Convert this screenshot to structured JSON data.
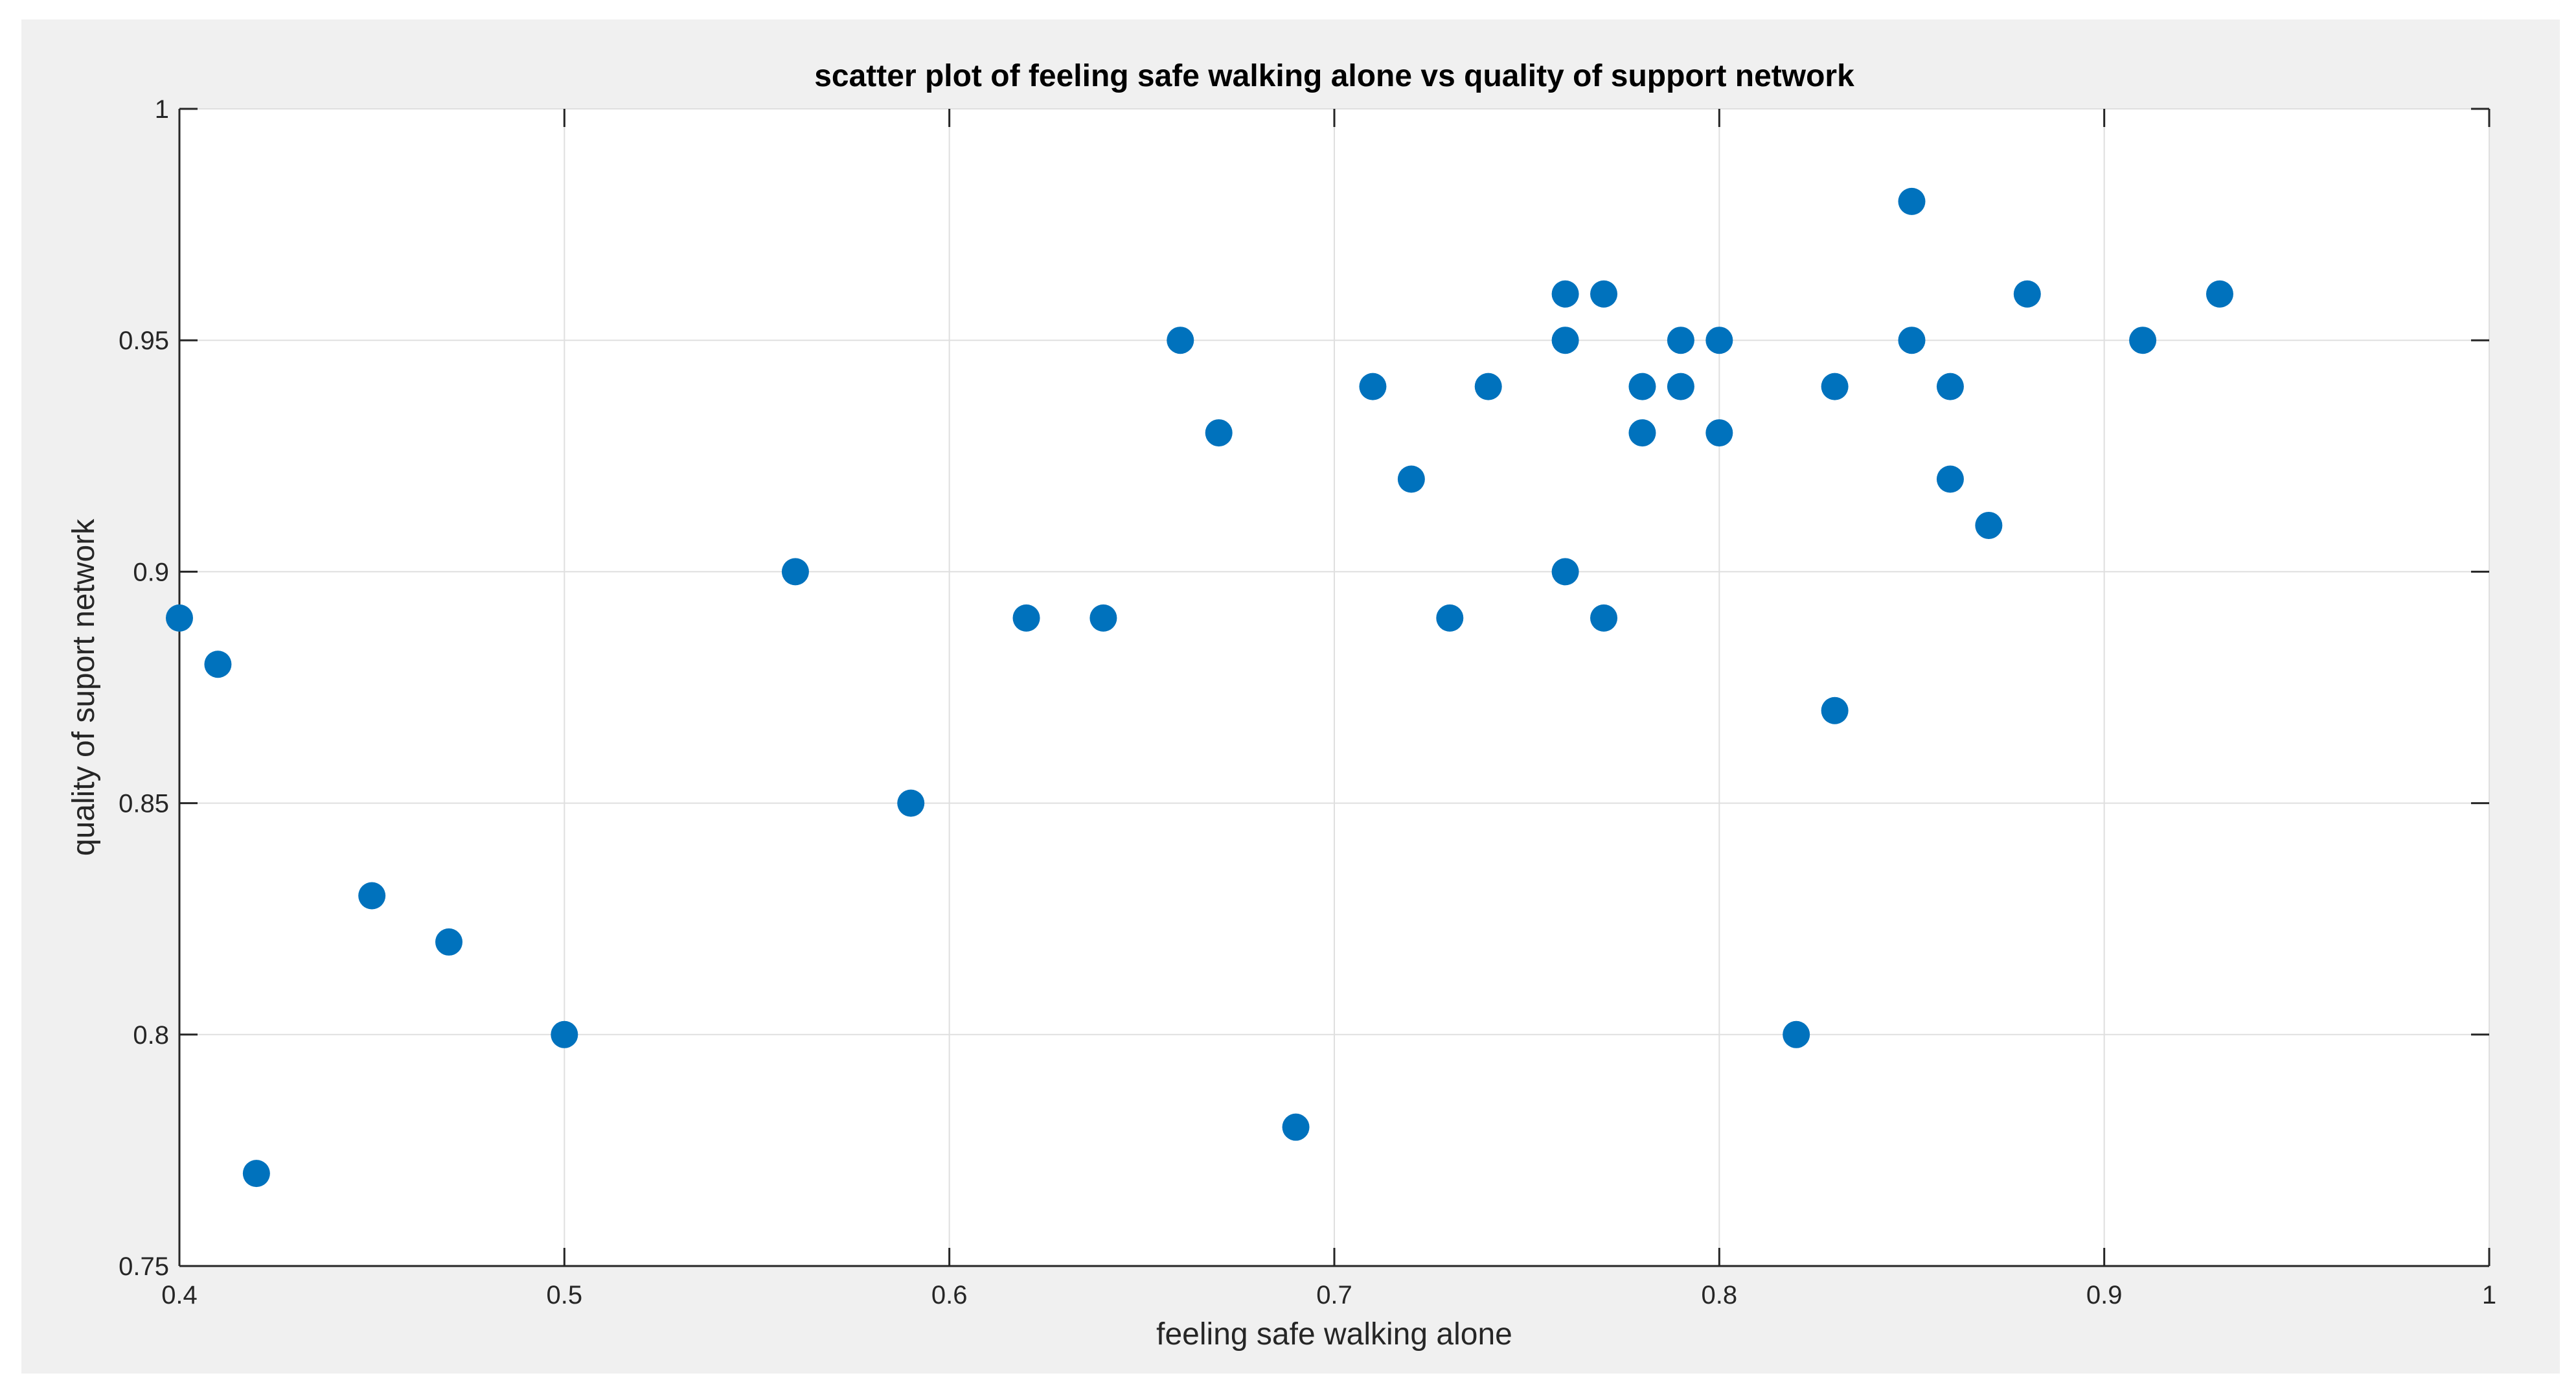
{
  "chart_data": {
    "type": "scatter",
    "title": "scatter plot of feeling safe walking alone vs quality of support network",
    "xlabel": "feeling safe walking alone",
    "ylabel": "quality of suport network",
    "xlim": [
      0.4,
      1
    ],
    "ylim": [
      0.75,
      1
    ],
    "xticks": [
      "0.4",
      "0.5",
      "0.6",
      "0.7",
      "0.8",
      "0.9",
      "1"
    ],
    "yticks": [
      "0.75",
      "0.8",
      "0.85",
      "0.9",
      "0.95",
      "1"
    ],
    "grid": true,
    "marker_color": "#0072bd",
    "points": [
      {
        "x": 0.4,
        "y": 0.89
      },
      {
        "x": 0.41,
        "y": 0.88
      },
      {
        "x": 0.42,
        "y": 0.77
      },
      {
        "x": 0.45,
        "y": 0.83
      },
      {
        "x": 0.47,
        "y": 0.82
      },
      {
        "x": 0.5,
        "y": 0.8
      },
      {
        "x": 0.56,
        "y": 0.9
      },
      {
        "x": 0.59,
        "y": 0.85
      },
      {
        "x": 0.62,
        "y": 0.89
      },
      {
        "x": 0.64,
        "y": 0.89
      },
      {
        "x": 0.66,
        "y": 0.95
      },
      {
        "x": 0.67,
        "y": 0.93
      },
      {
        "x": 0.69,
        "y": 0.78
      },
      {
        "x": 0.71,
        "y": 0.94
      },
      {
        "x": 0.72,
        "y": 0.92
      },
      {
        "x": 0.73,
        "y": 0.89
      },
      {
        "x": 0.74,
        "y": 0.94
      },
      {
        "x": 0.76,
        "y": 0.96
      },
      {
        "x": 0.76,
        "y": 0.95
      },
      {
        "x": 0.76,
        "y": 0.9
      },
      {
        "x": 0.77,
        "y": 0.96
      },
      {
        "x": 0.77,
        "y": 0.89
      },
      {
        "x": 0.78,
        "y": 0.94
      },
      {
        "x": 0.78,
        "y": 0.93
      },
      {
        "x": 0.79,
        "y": 0.95
      },
      {
        "x": 0.79,
        "y": 0.94
      },
      {
        "x": 0.8,
        "y": 0.95
      },
      {
        "x": 0.8,
        "y": 0.93
      },
      {
        "x": 0.82,
        "y": 0.8
      },
      {
        "x": 0.83,
        "y": 0.94
      },
      {
        "x": 0.83,
        "y": 0.87
      },
      {
        "x": 0.85,
        "y": 0.98
      },
      {
        "x": 0.85,
        "y": 0.95
      },
      {
        "x": 0.86,
        "y": 0.94
      },
      {
        "x": 0.86,
        "y": 0.92
      },
      {
        "x": 0.87,
        "y": 0.91
      },
      {
        "x": 0.88,
        "y": 0.96
      },
      {
        "x": 0.91,
        "y": 0.95
      },
      {
        "x": 0.93,
        "y": 0.96
      }
    ]
  }
}
